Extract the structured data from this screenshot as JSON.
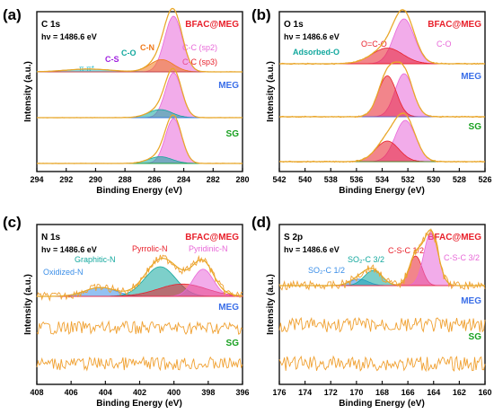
{
  "chart_data": [
    {
      "type": "line",
      "panel_label": "(a)",
      "title": "C 1s",
      "subtitle": "hν = 1486.6 eV",
      "xlabel": "Binding Energy (eV)",
      "ylabel": "Intensity (a.u.)",
      "xlim": [
        294,
        280
      ],
      "xticks": [
        294,
        292,
        290,
        288,
        286,
        284,
        282,
        280
      ],
      "samples": [
        {
          "name": "BFAC@MEG",
          "color": "#e8202b"
        },
        {
          "name": "MEG",
          "color": "#3a6ee8"
        },
        {
          "name": "SG",
          "color": "#18a020"
        }
      ],
      "components": [
        {
          "name": "π-π*",
          "center": 290.5,
          "color": "#22b8c8"
        },
        {
          "name": "C-S",
          "center": 286.4,
          "color": "#a020e0"
        },
        {
          "name": "C-O",
          "center": 285.9,
          "color": "#13a89e"
        },
        {
          "name": "C-N",
          "center": 285.3,
          "color": "#f07818"
        },
        {
          "name": "C-C (sp2)",
          "center": 284.7,
          "color": "#e868d8"
        },
        {
          "name": "C-C (sp3)",
          "center": 285.2,
          "color": "#e8202b"
        }
      ],
      "series": [
        {
          "sample": "BFAC@MEG",
          "peaks": [
            {
              "center": 284.7,
              "height": 1.0,
              "width": 0.6
            },
            {
              "center": 285.5,
              "height": 0.22,
              "width": 0.8
            },
            {
              "center": 290.5,
              "height": 0.05,
              "width": 1.5
            }
          ]
        },
        {
          "sample": "MEG",
          "peaks": [
            {
              "center": 284.7,
              "height": 1.0,
              "width": 0.55
            },
            {
              "center": 285.6,
              "height": 0.18,
              "width": 0.8
            }
          ]
        },
        {
          "sample": "SG",
          "peaks": [
            {
              "center": 284.7,
              "height": 1.0,
              "width": 0.55
            },
            {
              "center": 285.6,
              "height": 0.15,
              "width": 0.8
            }
          ]
        }
      ]
    },
    {
      "type": "line",
      "panel_label": "(b)",
      "title": "O 1s",
      "subtitle": "hν = 1486.6 eV",
      "xlabel": "Binding Energy (eV)",
      "ylabel": "Intensity (a.u.)",
      "xlim": [
        542,
        526
      ],
      "xticks": [
        542,
        540,
        538,
        536,
        534,
        532,
        530,
        528,
        526
      ],
      "samples": [
        {
          "name": "BFAC@MEG",
          "color": "#e8202b"
        },
        {
          "name": "MEG",
          "color": "#3a6ee8"
        },
        {
          "name": "SG",
          "color": "#18a020"
        }
      ],
      "components": [
        {
          "name": "Adsorbed-O",
          "center": 535.5,
          "color": "#13a89e"
        },
        {
          "name": "O=C-O",
          "center": 533.6,
          "color": "#e8202b"
        },
        {
          "name": "C-O",
          "center": 532.3,
          "color": "#e868d8"
        }
      ],
      "series": [
        {
          "sample": "BFAC@MEG",
          "peaks": [
            {
              "center": 532.3,
              "height": 1.0,
              "width": 0.8
            },
            {
              "center": 533.6,
              "height": 0.35,
              "width": 1.2
            }
          ]
        },
        {
          "sample": "MEG",
          "peaks": [
            {
              "center": 532.3,
              "height": 1.0,
              "width": 0.7
            },
            {
              "center": 533.6,
              "height": 0.95,
              "width": 0.7
            }
          ]
        },
        {
          "sample": "SG",
          "peaks": [
            {
              "center": 532.2,
              "height": 1.0,
              "width": 0.8
            },
            {
              "center": 533.6,
              "height": 0.5,
              "width": 0.9
            }
          ]
        }
      ]
    },
    {
      "type": "line",
      "panel_label": "(c)",
      "title": "N 1s",
      "subtitle": "hν = 1486.6 eV",
      "xlabel": "Binding Energy (eV)",
      "ylabel": "Intensity (a.u.)",
      "xlim": [
        408,
        396
      ],
      "xticks": [
        408,
        406,
        404,
        402,
        400,
        398,
        396
      ],
      "samples": [
        {
          "name": "BFAC@MEG",
          "color": "#e8202b"
        },
        {
          "name": "MEG",
          "color": "#3a6ee8"
        },
        {
          "name": "SG",
          "color": "#18a020"
        }
      ],
      "components": [
        {
          "name": "Oxidized-N",
          "center": 404.3,
          "color": "#3a8ee8"
        },
        {
          "name": "Graphitic-N",
          "center": 400.8,
          "color": "#13a89e"
        },
        {
          "name": "Pyrrolic-N",
          "center": 399.5,
          "color": "#e8202b"
        },
        {
          "name": "Pyridinic-N",
          "center": 398.3,
          "color": "#e868d8"
        }
      ],
      "series": [
        {
          "sample": "BFAC@MEG",
          "peaks": [
            {
              "center": 404.3,
              "height": 0.18,
              "width": 0.9
            },
            {
              "center": 400.8,
              "height": 0.6,
              "width": 0.9
            },
            {
              "center": 399.5,
              "height": 0.25,
              "width": 1.4
            },
            {
              "center": 398.3,
              "height": 0.55,
              "width": 0.6
            }
          ]
        }
      ]
    },
    {
      "type": "line",
      "panel_label": "(d)",
      "title": "S 2p",
      "subtitle": "hν = 1486.6 eV",
      "xlabel": "Binding Energy (eV)",
      "ylabel": "Intensity (a.u.)",
      "xlim": [
        176,
        160
      ],
      "xticks": [
        176,
        174,
        172,
        170,
        168,
        166,
        164,
        162,
        160
      ],
      "samples": [
        {
          "name": "BFAC@MEG",
          "color": "#e8202b"
        },
        {
          "name": "MEG",
          "color": "#3a6ee8"
        },
        {
          "name": "SG",
          "color": "#18a020"
        }
      ],
      "components": [
        {
          "name": "SO₂-C 1/2",
          "center": 169.8,
          "color": "#3a8ee8"
        },
        {
          "name": "SO₂-C 3/2",
          "center": 168.7,
          "color": "#13a89e"
        },
        {
          "name": "C-S-C 1/2",
          "center": 165.4,
          "color": "#e8202b"
        },
        {
          "name": "C-S-C 3/2",
          "center": 164.2,
          "color": "#e868d8"
        }
      ],
      "series": [
        {
          "sample": "BFAC@MEG",
          "peaks": [
            {
              "center": 169.8,
              "height": 0.12,
              "width": 0.7
            },
            {
              "center": 168.7,
              "height": 0.28,
              "width": 0.7
            },
            {
              "center": 165.4,
              "height": 0.55,
              "width": 0.5
            },
            {
              "center": 164.2,
              "height": 1.0,
              "width": 0.55
            }
          ]
        }
      ]
    }
  ],
  "colors": {
    "raw_data": "#f0a030",
    "envelope": "#e8a82a",
    "axis": "#111111"
  }
}
